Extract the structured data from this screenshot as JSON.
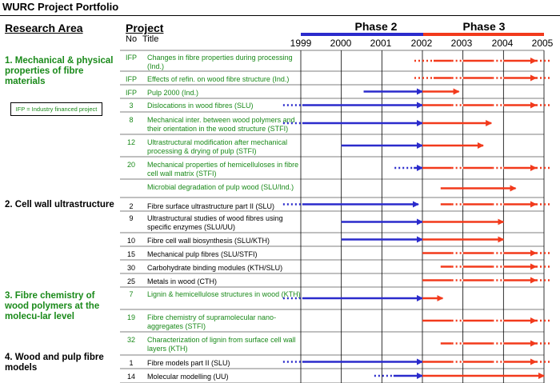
{
  "title": "WURC Project Portfolio",
  "headers": {
    "research_area": "Research Area",
    "project": "Project",
    "no": "No",
    "title": "Title"
  },
  "phases": [
    {
      "label": "Phase 2",
      "from": 1999,
      "to": 2002,
      "color": "#2b2bcc"
    },
    {
      "label": "Phase 3",
      "from": 2002,
      "to": 2005,
      "color": "#f23a1c"
    }
  ],
  "years": [
    "1999",
    "2000",
    "2001",
    "2002",
    "2003",
    "2004",
    "2005"
  ],
  "colors": {
    "blue": "#2b2bcc",
    "red": "#f23a1c",
    "green": "#1a8a1a"
  },
  "ifp_note": "IFP = Industry financed project",
  "areas": [
    {
      "label": "1. Mechanical & physical properties of fibre materials",
      "color": "green"
    },
    {
      "label": "2.  Cell wall ultrastructure",
      "color": "black"
    },
    {
      "label": "3. Fibre chemistry of wood polymers at the molecu-lar level",
      "color": "green"
    },
    {
      "label": "4. Wood and pulp fibre models",
      "color": "black"
    }
  ],
  "projects": [
    {
      "no": "IFP",
      "title": "Changes in fibre properties during processing (Ind.)",
      "color": "green",
      "bars": [
        {
          "c": "red",
          "from": 2002,
          "to": 2005,
          "dotted_start": true,
          "dotted_end": true
        }
      ]
    },
    {
      "no": "IFP",
      "title": "Effects of refin. on wood fibre structure (Ind.)",
      "color": "green",
      "bars": [
        {
          "c": "red",
          "from": 2002,
          "to": 2005,
          "dotted_start": true,
          "dotted_end": true
        }
      ]
    },
    {
      "no": "IFP",
      "title": "Pulp 2000 (Ind.)",
      "color": "green",
      "bars": [
        {
          "c": "blue",
          "from": 2000.55,
          "to": 2002
        },
        {
          "c": "red",
          "from": 2002,
          "to": 2002.9
        }
      ]
    },
    {
      "no": "3",
      "title": "Dislocations in wood fibres (SLU)",
      "color": "green",
      "bars": [
        {
          "c": "blue",
          "from": 1998.8,
          "to": 2002,
          "dotted_start": true
        },
        {
          "c": "red",
          "from": 2002,
          "to": 2005,
          "dotted_end": true
        }
      ]
    },
    {
      "no": "8",
      "title": "Mechanical inter. between wood polymers and their orientation in the wood structure (STFI)",
      "color": "green",
      "bars": [
        {
          "c": "blue",
          "from": 1998.8,
          "to": 2002,
          "dotted_start": true
        },
        {
          "c": "red",
          "from": 2002,
          "to": 2003.7
        }
      ]
    },
    {
      "no": "12",
      "title": "Ultrastructural modification after mechanical processing & drying of pulp (STFI)",
      "color": "green",
      "bars": [
        {
          "c": "blue",
          "from": 2000,
          "to": 2002
        },
        {
          "c": "red",
          "from": 2002,
          "to": 2003.5
        }
      ]
    },
    {
      "no": "20",
      "title": "Mechanical properties of hemicelluloses in fibre cell wall matrix (STFI)",
      "color": "green",
      "bars": [
        {
          "c": "blue",
          "from": 2001.55,
          "to": 2002,
          "dotted_start": true
        },
        {
          "c": "red",
          "from": 2002,
          "to": 2005,
          "dotted_end": true
        }
      ]
    },
    {
      "no": "",
      "title": "Microbial degradation of pulp wood (SLU/Ind.)",
      "color": "green",
      "bars": [
        {
          "c": "red",
          "from": 2002.45,
          "to": 2004.3
        }
      ]
    },
    {
      "no": "2",
      "title": "Fibre surface ultrastructure part II (SLU)",
      "color": "black",
      "bars": [
        {
          "c": "blue",
          "from": 1998.8,
          "to": 2001.9,
          "dotted_start": true
        },
        {
          "c": "red",
          "from": 2002.45,
          "to": 2005,
          "dotted_end": true
        }
      ]
    },
    {
      "no": "9",
      "title": "Ultrastructural studies of wood fibres using specific enzymes (SLU/UU)",
      "color": "black",
      "bars": [
        {
          "c": "blue",
          "from": 2000,
          "to": 2002
        },
        {
          "c": "red",
          "from": 2002,
          "to": 2004
        }
      ]
    },
    {
      "no": "10",
      "title": "Fibre cell wall biosynthesis (SLU/KTH)",
      "color": "black",
      "bars": [
        {
          "c": "blue",
          "from": 2000,
          "to": 2002
        },
        {
          "c": "red",
          "from": 2002,
          "to": 2004
        }
      ]
    },
    {
      "no": "15",
      "title": "Mechanical pulp fibres (SLU/STFI)",
      "color": "black",
      "bars": [
        {
          "c": "red",
          "from": 2002,
          "to": 2005,
          "dotted_end": true
        }
      ]
    },
    {
      "no": "30",
      "title": "Carbohydrate binding modules (KTH/SLU)",
      "color": "black",
      "bars": [
        {
          "c": "red",
          "from": 2002.45,
          "to": 2005,
          "dotted_end": true
        }
      ]
    },
    {
      "no": "25",
      "title": "Metals in wood (CTH)",
      "color": "black",
      "bars": [
        {
          "c": "red",
          "from": 2002,
          "to": 2005,
          "dotted_end": true
        }
      ]
    },
    {
      "no": "7",
      "title": "Lignin & hemicellulose structures in wood (KTH)",
      "color": "green",
      "bars": [
        {
          "c": "blue",
          "from": 1998.8,
          "to": 2002,
          "dotted_start": true
        },
        {
          "c": "red",
          "from": 2002,
          "to": 2002.5
        }
      ]
    },
    {
      "no": "19",
      "title": "Fibre chemistry of supramolecular nano-aggregates (STFI)",
      "color": "green",
      "bars": [
        {
          "c": "red",
          "from": 2002,
          "to": 2005,
          "dotted_end": true
        }
      ]
    },
    {
      "no": "32",
      "title": "Characterization of lignin from surface cell wall layers (KTH)",
      "color": "green",
      "bars": [
        {
          "c": "red",
          "from": 2002.45,
          "to": 2005,
          "dotted_end": true
        }
      ]
    },
    {
      "no": "1",
      "title": "Fibre models part II (SLU)",
      "color": "black",
      "bars": [
        {
          "c": "blue",
          "from": 1998.8,
          "to": 2002,
          "dotted_start": true
        },
        {
          "c": "red",
          "from": 2002,
          "to": 2005,
          "dotted_end": true
        }
      ]
    },
    {
      "no": "14",
      "title": "Molecular modelling (UU)",
      "color": "black",
      "bars": [
        {
          "c": "blue",
          "from": 2001.05,
          "to": 2002,
          "dotted_start": true
        },
        {
          "c": "red",
          "from": 2002,
          "to": 2005
        }
      ]
    }
  ]
}
